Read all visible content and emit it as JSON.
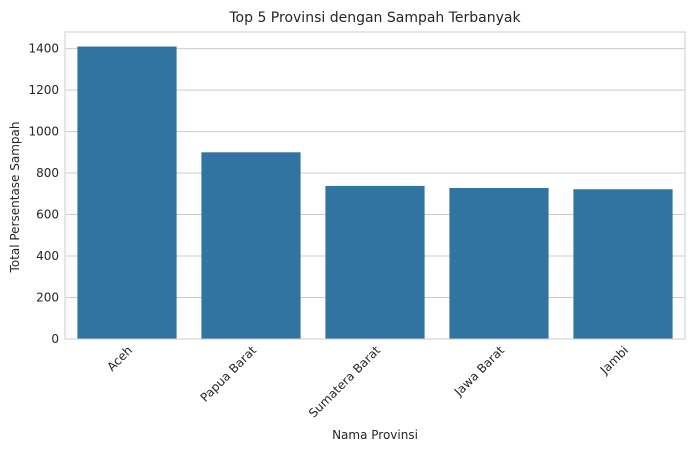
{
  "chart_data": {
    "type": "bar",
    "title": "Top 5 Provinsi dengan Sampah Terbanyak",
    "xlabel": "Nama Provinsi",
    "ylabel": "Total Persentase Sampah",
    "categories": [
      "Aceh",
      "Papua Barat",
      "Sumatera Barat",
      "Jawa Barat",
      "Jambi"
    ],
    "values": [
      1410,
      900,
      738,
      728,
      722
    ],
    "ylim": [
      0,
      1480
    ],
    "yticks": [
      0,
      200,
      400,
      600,
      800,
      1000,
      1200,
      1400
    ],
    "grid": true,
    "bar_color": "#3274a1",
    "grid_color": "#cccccc",
    "frame_color": "#cccccc"
  }
}
